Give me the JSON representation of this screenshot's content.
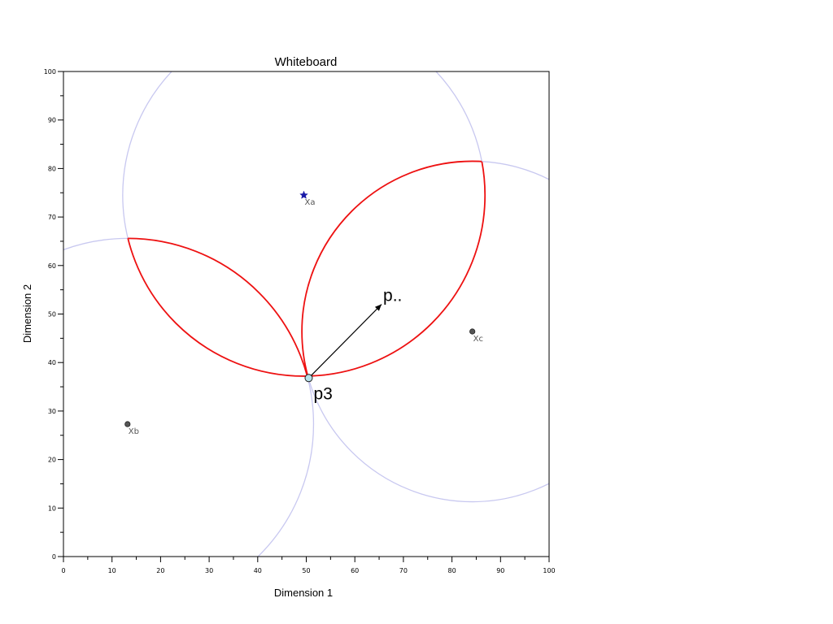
{
  "chart_data": {
    "type": "scatter",
    "title": "Whiteboard",
    "xlabel": "Dimension 1",
    "ylabel": "Dimension 2",
    "xlim": [
      0,
      100
    ],
    "ylim": [
      0,
      100
    ],
    "xticks": [
      0,
      10,
      20,
      30,
      40,
      50,
      60,
      70,
      80,
      90,
      100
    ],
    "yticks": [
      0,
      10,
      20,
      30,
      40,
      50,
      60,
      70,
      80,
      90,
      100
    ],
    "grid": false,
    "points": [
      {
        "label": "Xa",
        "x": 49.5,
        "y": 74.5,
        "marker": "star",
        "color": "#1a1aa8"
      },
      {
        "label": "Xb",
        "x": 13.2,
        "y": 27.3,
        "marker": "dot",
        "color": "#555555"
      },
      {
        "label": "Xc",
        "x": 84.2,
        "y": 46.4,
        "marker": "dot",
        "color": "#555555"
      }
    ],
    "circles": [
      {
        "center": "Xa",
        "cx": 49.5,
        "cy": 74.5,
        "r": 37.3,
        "color": "#c8c8f0"
      },
      {
        "center": "Xb",
        "cx": 13.2,
        "cy": 27.3,
        "r": 38.3,
        "color": "#c8c8f0"
      },
      {
        "center": "Xc",
        "cx": 84.2,
        "cy": 46.4,
        "r": 35.1,
        "color": "#c8c8f0"
      }
    ],
    "region_color": "#ee1111",
    "marked_point": {
      "label": "p3",
      "x": 50.5,
      "y": 36.8,
      "color": "#b8e0e8"
    },
    "arrow": {
      "label": "p..",
      "from": [
        50.5,
        36.8
      ],
      "to": [
        65.5,
        52.0
      ],
      "color": "#000000"
    }
  }
}
